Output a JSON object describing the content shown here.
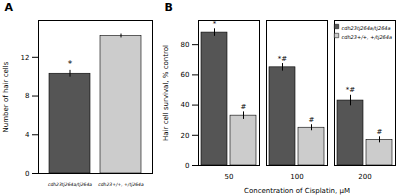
{
  "chart_data": [
    {
      "type": "bar",
      "title": "A",
      "categories": [
        "cdh23tj264a/tj264a",
        "cdh23+/+, +/tj264a"
      ],
      "values": [
        10.3,
        14.2
      ],
      "errors": [
        0.35,
        0.2
      ],
      "colors": [
        "#555555",
        "#cccccc"
      ],
      "ylabel": "Number of hair cells",
      "ylim": [
        0,
        15.8
      ],
      "yticks": [
        0,
        4,
        8,
        12
      ],
      "annotations": [
        {
          "category": "cdh23tj264a/tj264a",
          "text": "*"
        }
      ]
    },
    {
      "type": "bar",
      "title": "B",
      "categories": [
        "50",
        "100",
        "200"
      ],
      "xlabel": "Concentration of Cisplatin, μM",
      "ylabel": "Hair cell survival, % control",
      "ylim": [
        0,
        96
      ],
      "yticks": [
        0,
        20,
        40,
        60,
        80
      ],
      "legend": "upper right",
      "series": [
        {
          "name": "cdh23tj264a/tj264a",
          "color": "#555555",
          "values": [
            88,
            65,
            43
          ],
          "errors": [
            2.5,
            2.5,
            3.5
          ],
          "annotations": [
            "*",
            "*#",
            "*#"
          ]
        },
        {
          "name": "cdh23+/+, +/tj264a",
          "color": "#cccccc",
          "values": [
            33,
            25,
            17
          ],
          "errors": [
            2.5,
            2.0,
            2.0
          ],
          "annotations": [
            "#",
            "#",
            "#"
          ]
        }
      ]
    }
  ]
}
